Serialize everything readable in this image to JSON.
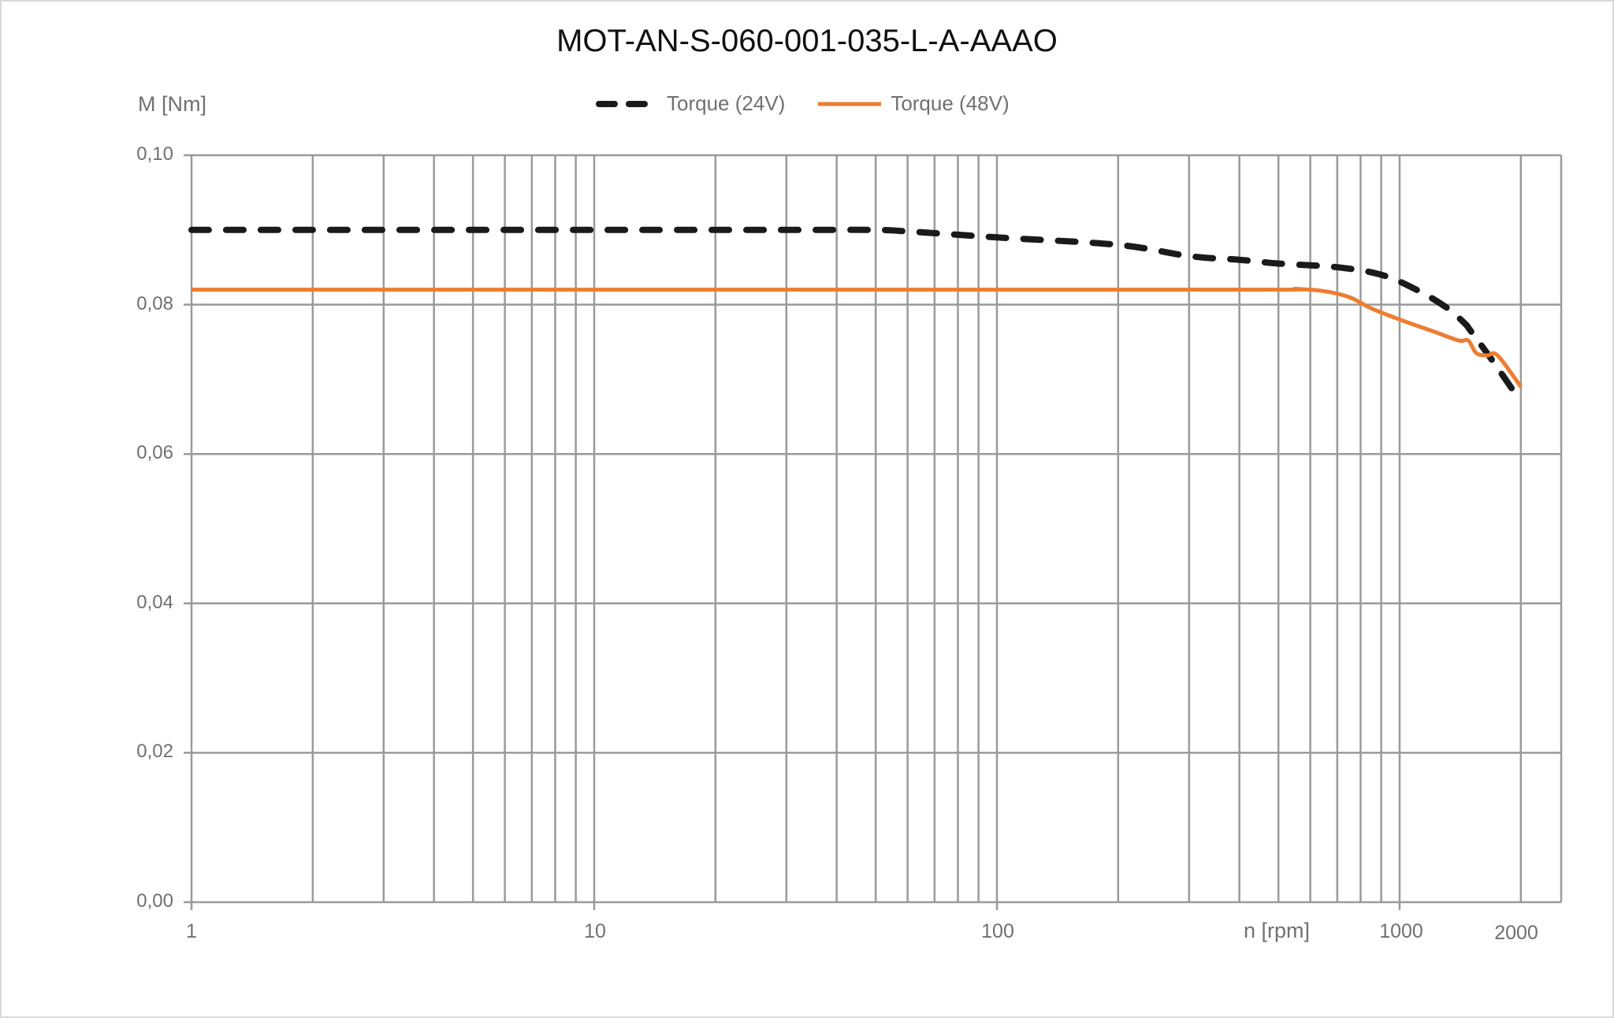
{
  "title": "MOT-AN-S-060-001-035-L-A-AAAO",
  "axes": {
    "y_label": "M [Nm]",
    "x_label": "n [rpm]",
    "y_ticks": [
      "0,10",
      "0,08",
      "0,06",
      "0,04",
      "0,02",
      "0,00"
    ],
    "x_ticks": [
      "1",
      "10",
      "100",
      "1000",
      "2000"
    ]
  },
  "legend": [
    {
      "label": "Torque (24V)",
      "color": "#1a1a1a",
      "style": "dashed"
    },
    {
      "label": "Torque (48V)",
      "color": "#ed7d31",
      "style": "solid"
    }
  ],
  "colors": {
    "grid": "#9a9a9a",
    "series_24v": "#1a1a1a",
    "series_48v": "#ed7d31",
    "border": "#d9d9d9"
  },
  "chart_data": {
    "type": "line",
    "title": "MOT-AN-S-060-001-035-L-A-AAAO",
    "xlabel": "n [rpm]",
    "ylabel": "M [Nm]",
    "xscale": "log",
    "xlim": [
      1,
      2000
    ],
    "ylim": [
      0,
      0.1
    ],
    "grid": true,
    "legend_position": "top",
    "series": [
      {
        "name": "Torque (24V)",
        "style": "dashed",
        "color": "#1a1a1a",
        "x": [
          1,
          10,
          30,
          50,
          60,
          100,
          200,
          300,
          400,
          500,
          700,
          900,
          1100,
          1300,
          1450,
          1500,
          1700,
          2000
        ],
        "y": [
          0.09,
          0.09,
          0.09,
          0.09,
          0.0898,
          0.089,
          0.088,
          0.0865,
          0.086,
          0.0855,
          0.085,
          0.084,
          0.082,
          0.0797,
          0.0775,
          0.0765,
          0.0725,
          0.067
        ]
      },
      {
        "name": "Torque (48V)",
        "style": "solid",
        "color": "#ed7d31",
        "x": [
          1,
          10,
          100,
          500,
          550,
          650,
          750,
          850,
          1000,
          1200,
          1400,
          1480,
          1550,
          1650,
          1750,
          2000
        ],
        "y": [
          0.082,
          0.082,
          0.082,
          0.082,
          0.0821,
          0.0818,
          0.081,
          0.0795,
          0.078,
          0.0765,
          0.0752,
          0.0752,
          0.0735,
          0.0732,
          0.0732,
          0.069
        ]
      }
    ]
  }
}
